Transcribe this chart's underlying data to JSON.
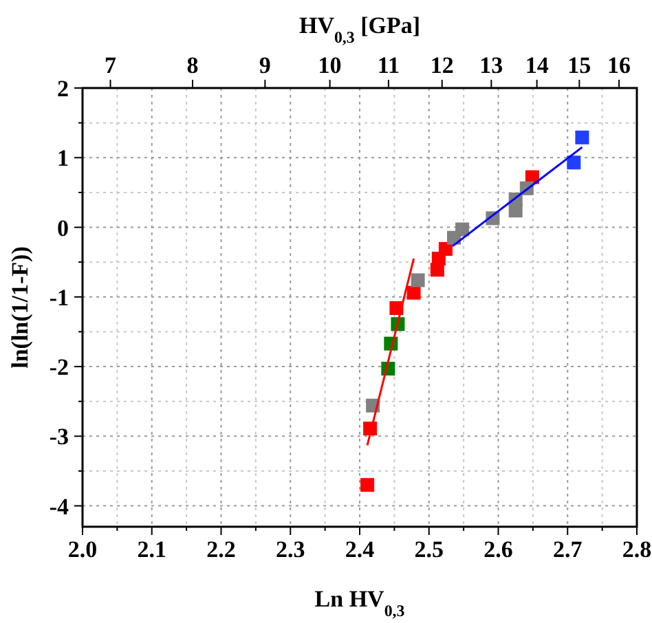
{
  "chart_data": {
    "type": "scatter",
    "xlabel": "Ln HV$_{0,3}$",
    "ylabel": "ln(ln(1/1-F))",
    "x2label": "HV$_{0,3}$ [GPa]",
    "xlim": [
      2.0,
      2.8
    ],
    "xticks": [
      {
        "value": 2.0,
        "label": "2.0"
      },
      {
        "value": 2.05,
        "label": null
      },
      {
        "value": 2.1,
        "label": "2.1"
      },
      {
        "value": 2.15,
        "label": null
      },
      {
        "value": 2.2,
        "label": "2.2"
      },
      {
        "value": 2.25,
        "label": null
      },
      {
        "value": 2.3,
        "label": "2.3"
      },
      {
        "value": 2.35,
        "label": null
      },
      {
        "value": 2.4,
        "label": "2.4"
      },
      {
        "value": 2.45,
        "label": null
      },
      {
        "value": 2.5,
        "label": "2.5"
      },
      {
        "value": 2.55,
        "label": null
      },
      {
        "value": 2.6,
        "label": "2.6"
      },
      {
        "value": 2.65,
        "label": null
      },
      {
        "value": 2.7,
        "label": "2.7"
      },
      {
        "value": 2.75,
        "label": null
      },
      {
        "value": 2.8,
        "label": "2.8"
      }
    ],
    "x2lim": [
      6.69,
      16.47
    ],
    "x2ticks": [
      7,
      8,
      9,
      10,
      11,
      12,
      13,
      14,
      15,
      16
    ],
    "log": "x2",
    "ylim": [
      -4.3,
      2
    ],
    "yticks": [
      -4,
      {
        "value": -3.5,
        "label": null
      },
      -3,
      {
        "value": -2.5,
        "label": null
      },
      -2,
      {
        "value": -1.5,
        "label": null
      },
      -1,
      {
        "value": -0.5,
        "label": null
      },
      0,
      {
        "value": 0.5,
        "label": null
      },
      1,
      {
        "value": 1.5,
        "label": null
      },
      2
    ],
    "grid": true,
    "marker": "square",
    "series": [
      {
        "color": "#ff0000",
        "x": [
          2.411,
          2.415,
          2.453,
          2.478,
          2.512,
          2.514,
          2.524,
          2.649
        ],
        "values": [
          -3.7,
          -2.89,
          -1.16,
          -0.94,
          -0.61,
          -0.45,
          -0.31,
          0.72
        ]
      },
      {
        "color": "#008000",
        "x": [
          2.441,
          2.445,
          2.455
        ],
        "values": [
          -2.03,
          -1.67,
          -1.39
        ]
      },
      {
        "color": "#808080",
        "x": [
          2.419,
          2.484,
          2.536,
          2.548,
          2.592,
          2.625,
          2.625,
          2.641
        ],
        "values": [
          -2.56,
          -0.76,
          -0.15,
          -0.03,
          0.13,
          0.24,
          0.4,
          0.56
        ]
      },
      {
        "color": "#2040ff",
        "x": [
          2.709,
          2.721
        ],
        "values": [
          0.93,
          1.29
        ]
      },
      {
        "type": "line",
        "marker": "none",
        "color": "#ff0000",
        "x": [
          2.411,
          2.478
        ],
        "values": [
          -3.13,
          -0.45
        ]
      },
      {
        "type": "line",
        "marker": "none",
        "color": "#0000ff",
        "x": [
          2.534,
          2.721
        ],
        "values": [
          -0.27,
          1.15
        ]
      }
    ]
  }
}
